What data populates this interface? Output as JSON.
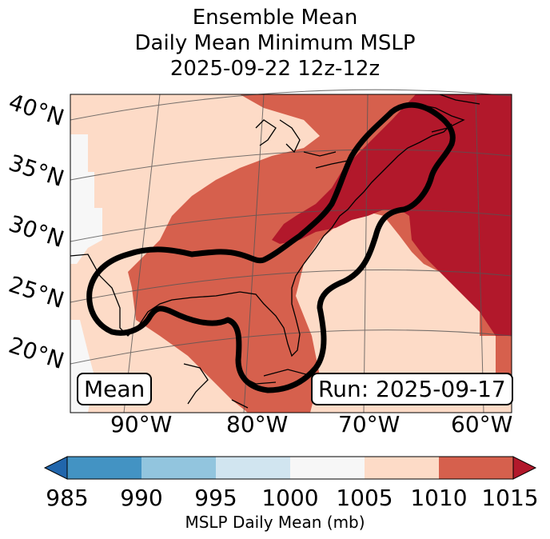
{
  "title": {
    "line1": "Ensemble Mean",
    "line2": "Daily Mean Minimum MSLP",
    "line3": "2025-09-22 12z-12z"
  },
  "lat_labels": [
    "40°N",
    "35°N",
    "30°N",
    "25°N",
    "20°N"
  ],
  "lon_labels": [
    "90°W",
    "80°W",
    "70°W",
    "60°W"
  ],
  "mean_label": "Mean",
  "run_label": "Run: 2025-09-17",
  "colorbar": {
    "ticks": [
      "985",
      "990",
      "995",
      "1000",
      "1005",
      "1010",
      "1015"
    ],
    "colors": [
      "#2166ac",
      "#4393c3",
      "#92c5de",
      "#d1e5f0",
      "#f7f7f7",
      "#fddbc7",
      "#d6604d",
      "#b2182b"
    ],
    "label": "MSLP Daily Mean (mb)"
  },
  "map_colors": {
    "ocean_light": "#f7f7f7",
    "band_1005": "#fddbc7",
    "band_1010": "#d6604d",
    "band_1015": "#b2182b"
  }
}
